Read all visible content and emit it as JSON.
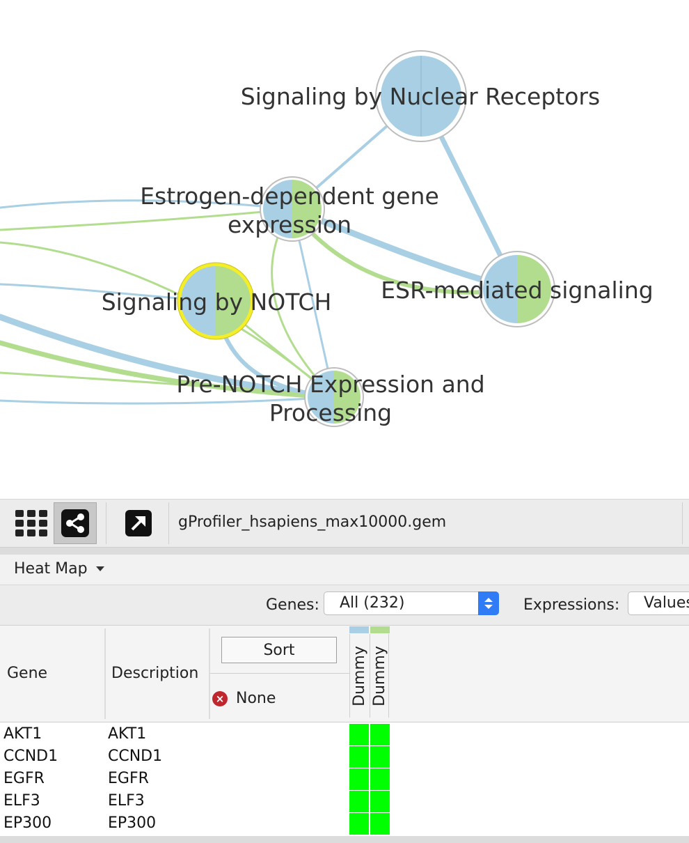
{
  "network": {
    "nodes": [
      {
        "id": "n1",
        "label_lines": [
          "Signaling by Nuclear Receptors"
        ],
        "selected": false
      },
      {
        "id": "n2",
        "label_lines": [
          "Estrogen-dependent gene",
          "expression"
        ],
        "selected": false
      },
      {
        "id": "n3",
        "label_lines": [
          "Signaling by NOTCH"
        ],
        "selected": true
      },
      {
        "id": "n4",
        "label_lines": [
          "ESR-mediated signaling"
        ],
        "selected": false
      },
      {
        "id": "n5",
        "label_lines": [
          "Pre-NOTCH Expression and",
          "Processing"
        ],
        "selected": false
      }
    ],
    "colors": {
      "blue": "#a8cfe3",
      "green": "#b2dd8e",
      "selected_ring": "#f4ee2a",
      "ring": "#bdbdbd"
    }
  },
  "toolbar": {
    "buttons": [
      {
        "icon": "grid-icon"
      },
      {
        "icon": "network-share-icon",
        "active": true
      },
      {
        "icon": "export-arrow-icon"
      }
    ],
    "filename": "gProfiler_hsapiens_max10000.gem"
  },
  "panel": {
    "menu_label": "Heat Map",
    "genes_label": "Genes:",
    "genes_value": "All (232)",
    "expressions_label": "Expressions:",
    "expressions_value": "Values"
  },
  "table": {
    "col_gene": "Gene",
    "col_description": "Description",
    "sort_label": "Sort",
    "sort_value": "None",
    "conditions": [
      {
        "name": "Dummy",
        "color": "#a8cfe3"
      },
      {
        "name": "Dummy",
        "color": "#b2dd8e"
      }
    ],
    "heat_color": "#00ff00",
    "rows": [
      {
        "gene": "AKT1",
        "description": "AKT1"
      },
      {
        "gene": "CCND1",
        "description": "CCND1"
      },
      {
        "gene": "EGFR",
        "description": "EGFR"
      },
      {
        "gene": "ELF3",
        "description": "ELF3"
      },
      {
        "gene": "EP300",
        "description": "EP300"
      }
    ]
  }
}
